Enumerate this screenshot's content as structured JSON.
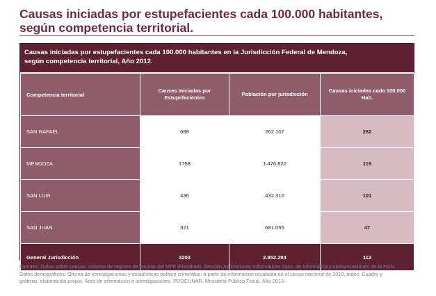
{
  "page": {
    "title_line1": "Causas iniciadas por estupefacientes cada 100.000 habitantes,",
    "title_line2": "según competencia territorial."
  },
  "table": {
    "caption_line1": "Causas iniciadas por estupefacientes cada 100.000 habitantes en la Jurisdicción Federal de Mendoza,",
    "caption_line2": "según competencia territorial, Año 2012.",
    "headers": [
      "Competencia territorial",
      "Causas Iniciadas por Estupefacientes",
      "Población por jurisdicción",
      "Causas iniciadas cada 100.000 Hab."
    ],
    "rows": [
      {
        "territory": "SAN RAFAEL",
        "causes": "688",
        "population": "262.107",
        "rate": "262"
      },
      {
        "territory": "MENDOZA",
        "causes": "1758",
        "population": "1.476.822",
        "rate": "119"
      },
      {
        "territory": "SAN LUIS",
        "causes": "436",
        "population": "432.310",
        "rate": "101"
      },
      {
        "territory": "SAN JUAN",
        "causes": "321",
        "population": "681.055",
        "rate": "47"
      }
    ],
    "total": {
      "label": "General Jurisdicción",
      "causes": "3203",
      "population": "2.852.294",
      "rate": "112"
    }
  },
  "footnote": {
    "line1": "Fuentes: Datos sobre causas, sistema de registro de causas del MPF (Fiscalnet). Sección Aplicaciones Informáticas Dpto. de Informática y comunicaciones de la PGN.",
    "line2": "Datos demográficos, Oficina de Investigaciones y estadísticas político criminales, a partir de información recabada en el censo nacional de 2010, Indec. Cuadro y",
    "line3": "gráficos, elaboración propia. Área de información e investigaciones. PROCUNAR. Ministerio Público Fiscal. Año 2013.-"
  },
  "colors": {
    "title": "#6e2a3c",
    "dark_maroon": "#5e2132",
    "mid_mauve": "#8e5c6b",
    "light_pink": "#d6bcc2",
    "footnote": "#7b8296"
  }
}
